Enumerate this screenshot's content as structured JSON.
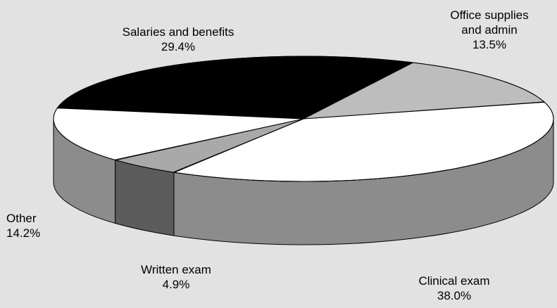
{
  "chart_data": {
    "type": "pie",
    "title": "",
    "slices": [
      {
        "label_lines": [
          "Salaries and benefits"
        ],
        "value_text": "29.4%",
        "value": 29.4,
        "color": "#000000",
        "side_color": "#000000"
      },
      {
        "label_lines": [
          "Office supplies",
          "and admin"
        ],
        "value_text": "13.5%",
        "value": 13.5,
        "color": "#bdbdbd",
        "side_color": "#8c8c8c"
      },
      {
        "label_lines": [
          "Clinical exam"
        ],
        "value_text": "38.0%",
        "value": 38.0,
        "color": "#ffffff",
        "side_color": "#8c8c8c"
      },
      {
        "label_lines": [
          "Written exam"
        ],
        "value_text": "4.9%",
        "value": 4.9,
        "color": "#a9a9a9",
        "side_color": "#5c5c5c"
      },
      {
        "label_lines": [
          "Other"
        ],
        "value_text": "14.2%",
        "value": 14.2,
        "color": "#ffffff",
        "side_color": "#8c8c8c"
      }
    ],
    "legend": "none",
    "three_d": true
  }
}
